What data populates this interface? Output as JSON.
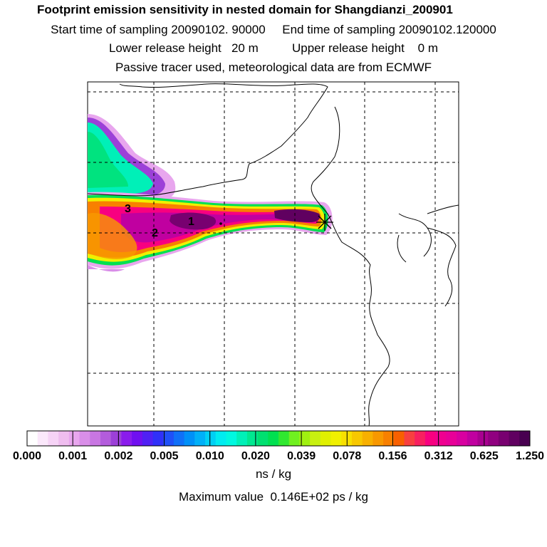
{
  "header": {
    "title": "Footprint emission sensitivity in nested domain for Shangdianzi_200901",
    "sampling": "Start time of sampling 20090102. 90000     End time of sampling 20090102.120000",
    "release": "Lower release height   20 m          Upper release height    0 m",
    "tracer": "Passive tracer used, meteorological data are from ECMWF"
  },
  "map": {
    "point_labels": [
      "1",
      "2",
      "3"
    ],
    "receptor_marker": "x-star-icon"
  },
  "colorbar": {
    "tick_labels": [
      "0.000",
      "0.001",
      "0.002",
      "0.005",
      "0.010",
      "0.020",
      "0.039",
      "0.078",
      "0.156",
      "0.312",
      "0.625",
      "1.250"
    ],
    "colors": [
      "#ffffff",
      "#fbe8fb",
      "#f6d3f6",
      "#efbdef",
      "#e8a6ee",
      "#d98ee8",
      "#c876e2",
      "#b35cdc",
      "#9c40d8",
      "#8a1cec",
      "#7010f0",
      "#5020f4",
      "#3030f8",
      "#2050f8",
      "#1070f8",
      "#0090f8",
      "#00b0f8",
      "#00d0f4",
      "#00ecf0",
      "#00f8e0",
      "#00f0b8",
      "#00e890",
      "#00e070",
      "#00e050",
      "#30e830",
      "#70f020",
      "#a0f010",
      "#c8f010",
      "#e0f000",
      "#f0f000",
      "#f8e000",
      "#f8c800",
      "#f8b000",
      "#f89800",
      "#f88000",
      "#f86000",
      "#f84040",
      "#f82060",
      "#f80080",
      "#f00090",
      "#e80098",
      "#d800a0",
      "#c000a0",
      "#a80090",
      "#900080",
      "#780070",
      "#600060",
      "#480050"
    ],
    "units": "ns / kg"
  },
  "footer": {
    "max_value": "Maximum value  0.146E+02 ps / kg"
  }
}
